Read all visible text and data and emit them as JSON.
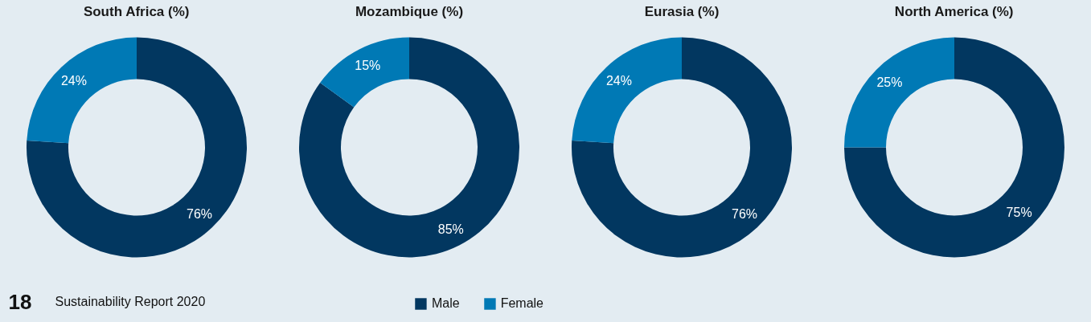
{
  "chart_data": [
    {
      "type": "donut",
      "title": "South Africa (%)",
      "categories": [
        "Male",
        "Female"
      ],
      "values": [
        76,
        24
      ],
      "colors": [
        "#023760",
        "#0079b5"
      ],
      "value_labels": [
        "76%",
        "24%"
      ],
      "legend": "bottom",
      "annotations": [
        "18",
        "Sustainability Report 2020"
      ]
    },
    {
      "type": "donut",
      "title": "Mozambique (%)",
      "categories": [
        null,
        null
      ],
      "values": [
        85,
        15
      ],
      "colors": [
        "#023760",
        "#0079b5"
      ],
      "value_labels": [
        "85%",
        "15%"
      ]
    },
    {
      "type": "donut",
      "title": "Eurasia (%)",
      "categories": [
        null,
        null
      ],
      "values": [
        76,
        24
      ],
      "colors": [
        "#023760",
        "#0079b5"
      ],
      "value_labels": [
        "76%",
        "24%"
      ]
    },
    {
      "type": "donut",
      "title": "North America (%)",
      "categories": [
        null,
        null
      ],
      "values": [
        75,
        25
      ],
      "colors": [
        "#023760",
        "#0079b5"
      ],
      "value_labels": [
        "75%",
        "25%"
      ]
    }
  ]
}
